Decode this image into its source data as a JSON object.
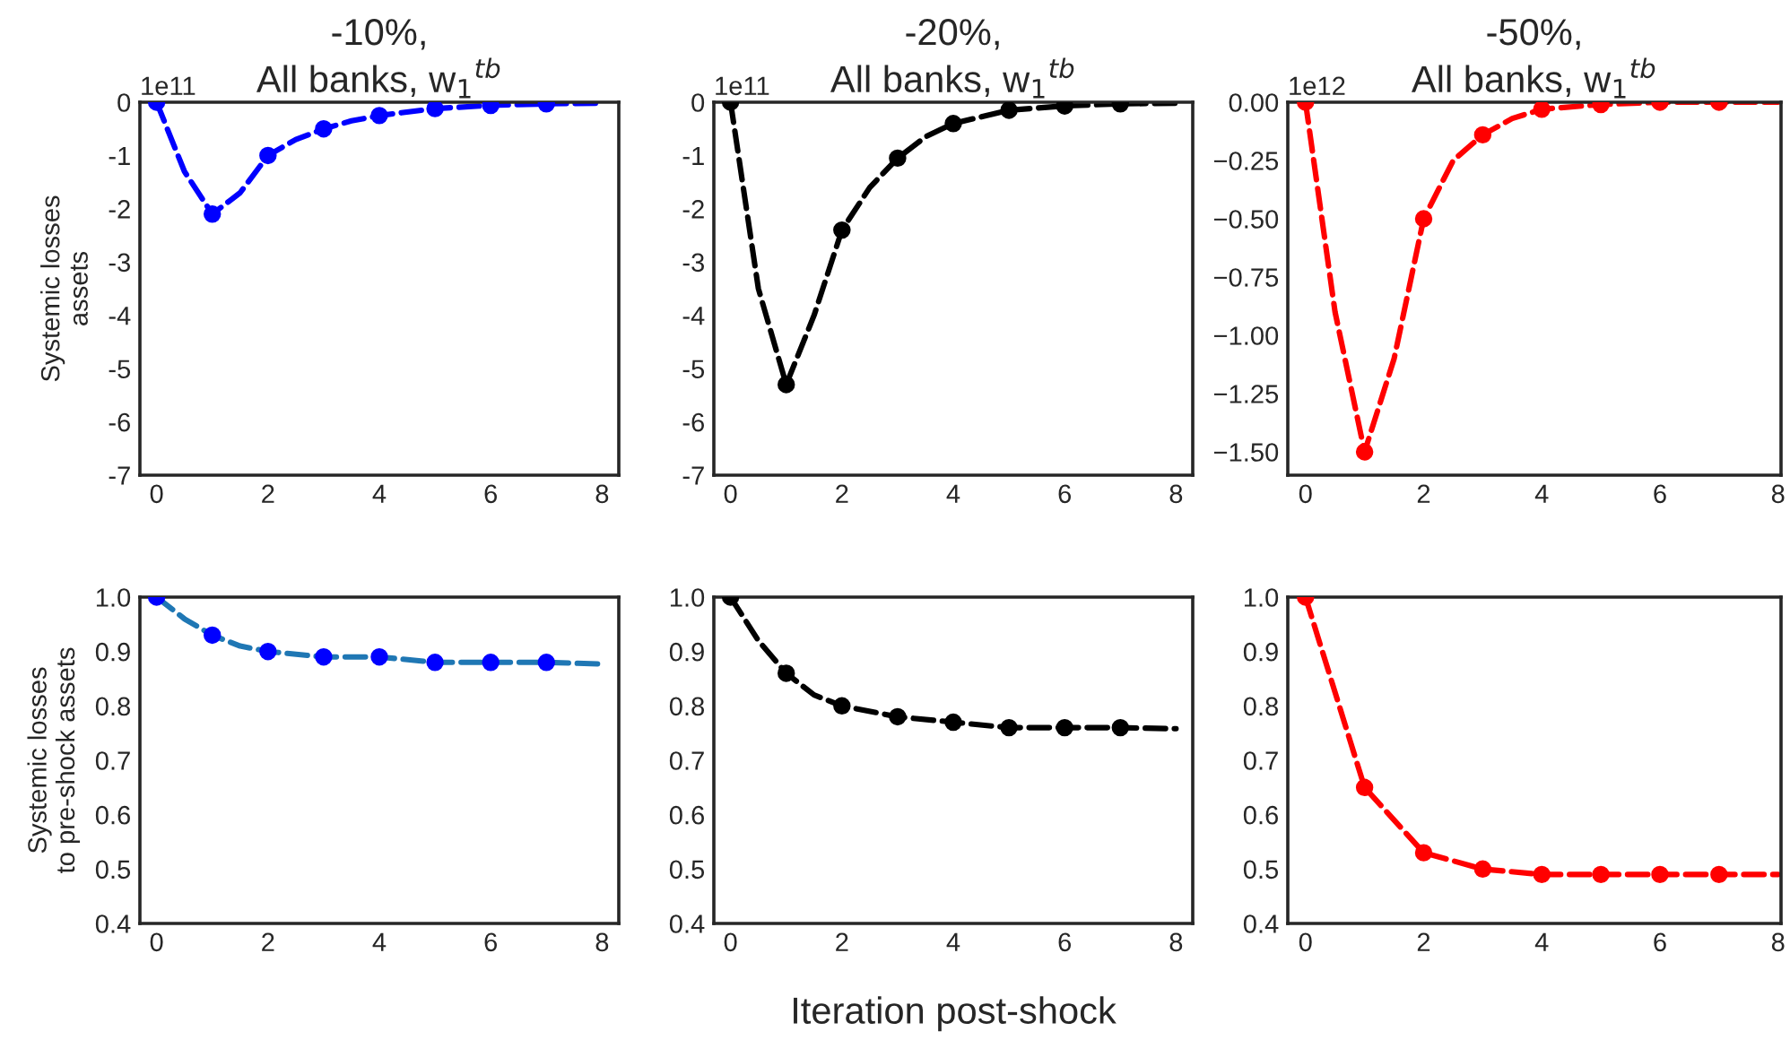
{
  "chart_data": [
    {
      "type": "line",
      "title": "-10%,\nAll banks, w$_{1}$$^{tb}$",
      "ylabel": "Systemic losses\nassets",
      "annotations": [
        "1e11"
      ],
      "xlim": [
        -0.3,
        8.3
      ],
      "xticks": [
        0,
        2,
        4,
        6,
        8
      ],
      "ylim": [
        -7,
        0
      ],
      "yticks": [
        0,
        -1,
        -2,
        -3,
        -4,
        -5,
        -6,
        -7
      ],
      "grid": false,
      "line_style": "dashed",
      "series": [
        {
          "color": "#0000ff",
          "x": [
            0,
            0.5,
            1,
            1.5,
            2,
            2.5,
            3,
            3.5,
            4,
            5,
            6,
            7,
            8
          ],
          "values": [
            0,
            -1.3,
            -2.1,
            -1.7,
            -1.0,
            -0.7,
            -0.5,
            -0.35,
            -0.25,
            -0.12,
            -0.06,
            -0.03,
            -0.02
          ]
        },
        {
          "type": "scatter",
          "color": "#0000ff",
          "marker": "circle",
          "x": [
            0,
            1,
            2,
            3,
            4,
            5,
            6,
            7
          ],
          "values": [
            0,
            -2.1,
            -1.0,
            -0.5,
            -0.25,
            -0.12,
            -0.06,
            -0.03
          ]
        }
      ]
    },
    {
      "type": "line",
      "title": "-20%,\nAll banks, w$_{1}$$^{tb}$",
      "annotations": [
        "1e11"
      ],
      "xlim": [
        -0.3,
        8.3
      ],
      "xticks": [
        0,
        2,
        4,
        6,
        8
      ],
      "ylim": [
        -7,
        0
      ],
      "yticks": [
        0,
        -1,
        -2,
        -3,
        -4,
        -5,
        -6,
        -7
      ],
      "grid": false,
      "line_style": "dashed",
      "series": [
        {
          "color": "#000000",
          "x": [
            0,
            0.5,
            1,
            1.5,
            2,
            2.5,
            3,
            3.5,
            4,
            5,
            6,
            7,
            8
          ],
          "values": [
            0,
            -3.5,
            -5.3,
            -4.0,
            -2.4,
            -1.6,
            -1.05,
            -0.65,
            -0.4,
            -0.15,
            -0.07,
            -0.03,
            -0.02
          ]
        },
        {
          "type": "scatter",
          "color": "#000000",
          "marker": "circle",
          "x": [
            0,
            1,
            2,
            3,
            4,
            5,
            6,
            7
          ],
          "values": [
            0,
            -5.3,
            -2.4,
            -1.05,
            -0.4,
            -0.15,
            -0.07,
            -0.03
          ]
        }
      ]
    },
    {
      "type": "line",
      "title": "-50%,\nAll banks, w$_{1}$$^{tb}$",
      "annotations": [
        "1e12"
      ],
      "xlim": [
        -0.3,
        8.05
      ],
      "xticks": [
        0,
        2,
        4,
        6,
        8
      ],
      "ylim": [
        -1.6,
        0
      ],
      "yticks": [
        {
          "value": 0,
          "label": "0.00"
        },
        {
          "value": -0.25,
          "label": "−0.25"
        },
        {
          "value": -0.5,
          "label": "−0.50"
        },
        {
          "value": -0.75,
          "label": "−0.75"
        },
        {
          "value": -1.0,
          "label": "−1.00"
        },
        {
          "value": -1.25,
          "label": "−1.25"
        },
        {
          "value": -1.5,
          "label": "−1.50"
        }
      ],
      "grid": false,
      "line_style": "dashed",
      "series": [
        {
          "color": "#ff0000",
          "x": [
            0,
            0.5,
            1,
            1.5,
            2,
            2.5,
            3,
            3.5,
            4,
            5,
            6,
            7,
            8
          ],
          "values": [
            0,
            -0.9,
            -1.5,
            -1.1,
            -0.5,
            -0.25,
            -0.14,
            -0.07,
            -0.03,
            -0.01,
            0,
            0,
            0
          ]
        },
        {
          "type": "scatter",
          "color": "#ff0000",
          "marker": "circle",
          "x": [
            0,
            1,
            2,
            3,
            4,
            5,
            6,
            7
          ],
          "values": [
            0,
            -1.5,
            -0.5,
            -0.14,
            -0.03,
            -0.01,
            0,
            0
          ]
        }
      ]
    },
    {
      "type": "line",
      "ylabel": "Systemic losses\nto pre-shock assets",
      "xlim": [
        -0.3,
        8.3
      ],
      "xticks": [
        0,
        2,
        4,
        6,
        8
      ],
      "ylim": [
        0.4,
        1.0
      ],
      "yticks": [
        0.4,
        0.5,
        0.6,
        0.7,
        0.8,
        0.9,
        {
          "value": 1.0,
          "label": "1.0"
        }
      ],
      "grid": false,
      "line_style": "dashed",
      "series": [
        {
          "color": "#1f77b4",
          "x": [
            0,
            0.5,
            1,
            1.5,
            2,
            3,
            4,
            5,
            6,
            7,
            8
          ],
          "values": [
            1.0,
            0.96,
            0.93,
            0.91,
            0.9,
            0.89,
            0.89,
            0.88,
            0.88,
            0.88,
            0.877
          ]
        },
        {
          "type": "scatter",
          "color": "#0000ff",
          "marker": "circle",
          "x": [
            0,
            1,
            2,
            3,
            4,
            5,
            6,
            7
          ],
          "values": [
            1.0,
            0.93,
            0.9,
            0.89,
            0.89,
            0.88,
            0.88,
            0.88
          ]
        }
      ]
    },
    {
      "type": "line",
      "xlabel": "Iteration post-shock",
      "xlim": [
        -0.3,
        8.3
      ],
      "xticks": [
        0,
        2,
        4,
        6,
        8
      ],
      "ylim": [
        0.4,
        1.0
      ],
      "yticks": [
        0.4,
        0.5,
        0.6,
        0.7,
        0.8,
        0.9,
        {
          "value": 1.0,
          "label": "1.0"
        }
      ],
      "grid": false,
      "line_style": "dashed",
      "series": [
        {
          "color": "#000000",
          "x": [
            0,
            0.5,
            1,
            1.5,
            2,
            3,
            4,
            5,
            6,
            7,
            8
          ],
          "values": [
            1.0,
            0.92,
            0.86,
            0.82,
            0.8,
            0.78,
            0.77,
            0.76,
            0.76,
            0.76,
            0.758
          ]
        },
        {
          "type": "scatter",
          "color": "#000000",
          "marker": "circle",
          "x": [
            0,
            1,
            2,
            3,
            4,
            5,
            6,
            7
          ],
          "values": [
            1.0,
            0.86,
            0.8,
            0.78,
            0.77,
            0.76,
            0.76,
            0.76
          ]
        }
      ]
    },
    {
      "type": "line",
      "xlim": [
        -0.3,
        8.05
      ],
      "xticks": [
        0,
        2,
        4,
        6,
        8
      ],
      "ylim": [
        0.4,
        1.0
      ],
      "yticks": [
        0.4,
        0.5,
        0.6,
        0.7,
        0.8,
        0.9,
        {
          "value": 1.0,
          "label": "1.0"
        }
      ],
      "grid": false,
      "line_style": "dashed",
      "series": [
        {
          "color": "#ff0000",
          "x": [
            0,
            1,
            2,
            3,
            4,
            5,
            6,
            7,
            8
          ],
          "values": [
            1.0,
            0.65,
            0.53,
            0.5,
            0.49,
            0.49,
            0.49,
            0.49,
            0.49
          ]
        },
        {
          "type": "scatter",
          "color": "#ff0000",
          "marker": "circle",
          "x": [
            0,
            1,
            2,
            3,
            4,
            5,
            6,
            7
          ],
          "values": [
            1.0,
            0.65,
            0.53,
            0.5,
            0.49,
            0.49,
            0.49,
            0.49
          ]
        }
      ]
    }
  ]
}
